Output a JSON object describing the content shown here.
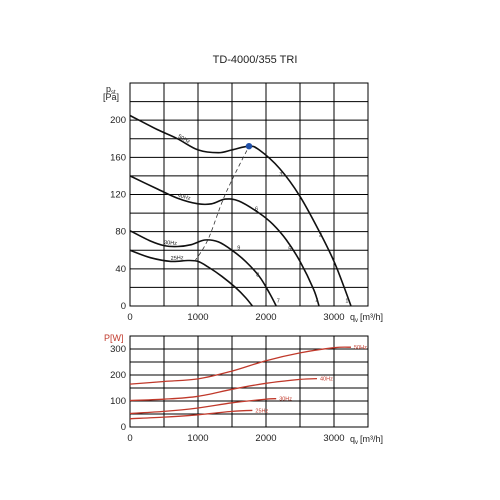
{
  "title": "TD-4000/355 TRI",
  "chart_data": [
    {
      "type": "line",
      "y_label_main": "p",
      "y_label_sub": "st",
      "y_unit": "[Pa]",
      "x_label_main": "q",
      "x_label_sub": "v",
      "x_unit": "[m³/h]",
      "xlim": [
        0,
        3500
      ],
      "ylim": [
        0,
        240
      ],
      "xticks": [
        0,
        1000,
        2000,
        3000
      ],
      "yticks": [
        0,
        40,
        80,
        120,
        160,
        200
      ],
      "grid": true,
      "series": [
        {
          "name": "50Hz",
          "points": [
            [
              0,
              205
            ],
            [
              400,
              190
            ],
            [
              700,
              180
            ],
            [
              1000,
              168
            ],
            [
              1300,
              165
            ],
            [
              1500,
              168
            ],
            [
              1750,
              172
            ],
            [
              1900,
              168
            ],
            [
              2200,
              148
            ],
            [
              2500,
              118
            ],
            [
              2800,
              78
            ],
            [
              3000,
              48
            ],
            [
              3150,
              20
            ],
            [
              3250,
              0
            ]
          ]
        },
        {
          "name": "40Hz",
          "points": [
            [
              0,
              140
            ],
            [
              400,
              126
            ],
            [
              700,
              116
            ],
            [
              1000,
              110
            ],
            [
              1200,
              110
            ],
            [
              1400,
              115
            ],
            [
              1600,
              113
            ],
            [
              1900,
              100
            ],
            [
              2100,
              88
            ],
            [
              2300,
              71
            ],
            [
              2500,
              48
            ],
            [
              2700,
              18
            ],
            [
              2780,
              0
            ]
          ]
        },
        {
          "name": "30Hz",
          "points": [
            [
              0,
              81
            ],
            [
              300,
              70
            ],
            [
              500,
              65
            ],
            [
              700,
              64
            ],
            [
              900,
              66
            ],
            [
              1100,
              71
            ],
            [
              1300,
              69
            ],
            [
              1500,
              60
            ],
            [
              1700,
              48
            ],
            [
              1900,
              32
            ],
            [
              2050,
              14
            ],
            [
              2150,
              0
            ]
          ]
        },
        {
          "name": "25Hz",
          "points": [
            [
              0,
              60
            ],
            [
              300,
              52
            ],
            [
              600,
              48
            ],
            [
              850,
              49
            ],
            [
              1000,
              48
            ],
            [
              1150,
              42
            ],
            [
              1350,
              32
            ],
            [
              1550,
              20
            ],
            [
              1700,
              9
            ],
            [
              1800,
              0
            ]
          ]
        }
      ],
      "system_curve": [
        [
          950,
          48
        ],
        [
          1150,
          72
        ],
        [
          1400,
          120
        ],
        [
          1750,
          172
        ]
      ],
      "operating_point": {
        "x": 1750,
        "y": 172,
        "color": "#1f4fa8"
      },
      "curve_numbers": [
        {
          "text": "3",
          "x": 2220,
          "y": 140
        },
        {
          "text": "2",
          "x": 2800,
          "y": 75
        },
        {
          "text": "6",
          "x": 1860,
          "y": 103
        },
        {
          "text": "5",
          "x": 2350,
          "y": 60
        },
        {
          "text": "9",
          "x": 1600,
          "y": 61
        },
        {
          "text": "8",
          "x": 1880,
          "y": 32
        },
        {
          "text": "4",
          "x": 2750,
          "y": 4
        },
        {
          "text": "7",
          "x": 2180,
          "y": 4
        },
        {
          "text": "1",
          "x": 3190,
          "y": 4
        }
      ]
    },
    {
      "type": "line",
      "y_label": "P[W]",
      "x_label_main": "q",
      "x_label_sub": "v",
      "x_unit": "[m³/h]",
      "xlim": [
        0,
        3500
      ],
      "ylim": [
        0,
        350
      ],
      "xticks": [
        0,
        1000,
        2000,
        3000
      ],
      "yticks": [
        0,
        100,
        200,
        300
      ],
      "grid": true,
      "color": "#c0392b",
      "series": [
        {
          "name": "50Hz",
          "points": [
            [
              0,
              165
            ],
            [
              500,
              175
            ],
            [
              1000,
              185
            ],
            [
              1500,
              215
            ],
            [
              2000,
              255
            ],
            [
              2500,
              285
            ],
            [
              3000,
              305
            ],
            [
              3250,
              307
            ]
          ]
        },
        {
          "name": "40Hz",
          "points": [
            [
              0,
              102
            ],
            [
              500,
              107
            ],
            [
              1000,
              118
            ],
            [
              1500,
              145
            ],
            [
              2000,
              168
            ],
            [
              2500,
              183
            ],
            [
              2750,
              186
            ]
          ]
        },
        {
          "name": "30Hz",
          "points": [
            [
              0,
              52
            ],
            [
              500,
              60
            ],
            [
              1000,
              73
            ],
            [
              1500,
              93
            ],
            [
              2000,
              107
            ],
            [
              2150,
              109
            ]
          ]
        },
        {
          "name": "25Hz",
          "points": [
            [
              0,
              32
            ],
            [
              500,
              38
            ],
            [
              1000,
              47
            ],
            [
              1500,
              60
            ],
            [
              1800,
              64
            ]
          ]
        }
      ]
    }
  ]
}
